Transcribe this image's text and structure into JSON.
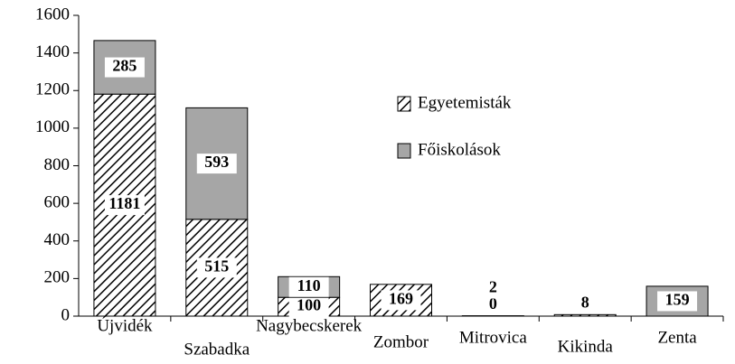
{
  "chart_data": {
    "type": "stacked-bar",
    "categories": [
      "Újvidék",
      "Szabadka",
      "Nagybecskerek",
      "Zombor",
      "Mitrovica",
      "Kikinda",
      "Zenta"
    ],
    "series": [
      {
        "name": "Egyetemisták",
        "color": "hatch",
        "values": [
          1181,
          515,
          100,
          169,
          0,
          8,
          0
        ]
      },
      {
        "name": "Főiskolások",
        "color": "#a6a6a6",
        "values": [
          285,
          593,
          110,
          0,
          2,
          0,
          159
        ]
      }
    ],
    "ylim": [
      0,
      1600
    ],
    "yticks": [
      0,
      200,
      400,
      600,
      800,
      1000,
      1200,
      1400,
      1600
    ],
    "legend": "inside-right"
  }
}
